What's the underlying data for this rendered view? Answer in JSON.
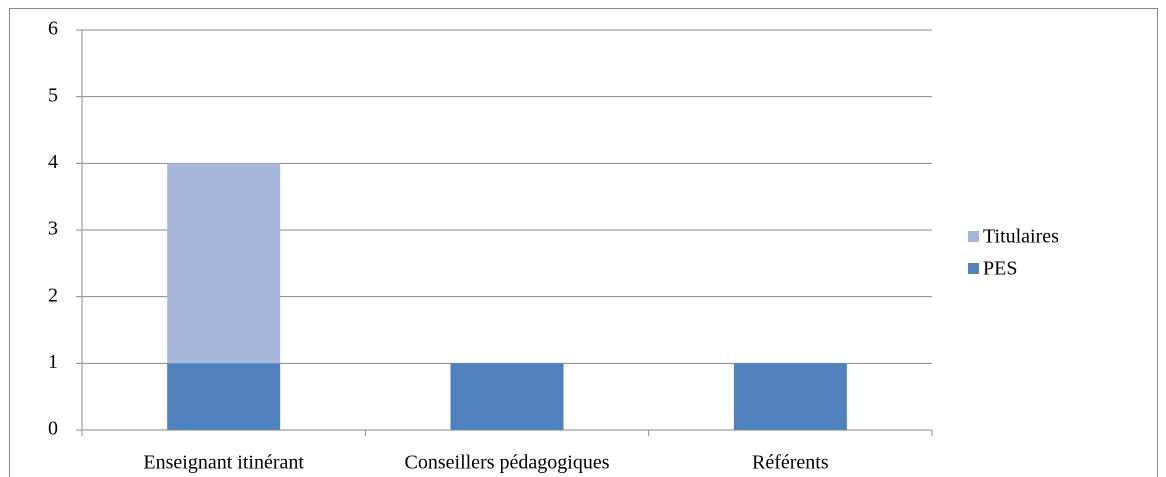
{
  "chart_data": {
    "type": "bar",
    "stacked": true,
    "categories": [
      "Enseignant itinérant",
      "Conseillers pédagogiques",
      "Référents"
    ],
    "series": [
      {
        "name": "PES",
        "color": "#4f81bd",
        "values": [
          1,
          1,
          1
        ]
      },
      {
        "name": "Titulaires",
        "color": "#a5b8d9",
        "values": [
          3,
          0,
          0
        ]
      }
    ],
    "ylim": [
      0,
      6
    ],
    "yticks": [
      0,
      1,
      2,
      3,
      4,
      5,
      6
    ],
    "grid": true,
    "legend": "right"
  }
}
